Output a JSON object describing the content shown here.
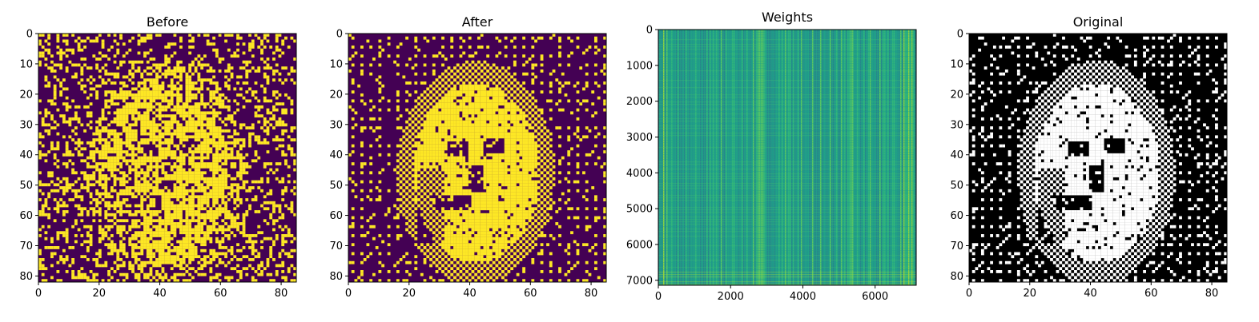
{
  "chart_data": [
    {
      "type": "heatmap",
      "title": "Before",
      "xlabel": "",
      "ylabel": "",
      "xlim": [
        0,
        85
      ],
      "ylim": [
        82,
        0
      ],
      "xticks": [
        0,
        20,
        40,
        60,
        80
      ],
      "yticks": [
        0,
        10,
        20,
        30,
        40,
        50,
        60,
        70,
        80
      ],
      "grid_shape": [
        83,
        86
      ],
      "colormap": [
        "#440154",
        "#fde725"
      ],
      "content": "binary noisy image of a face (yellow=1, purple=0)"
    },
    {
      "type": "heatmap",
      "title": "After",
      "xlabel": "",
      "ylabel": "",
      "xlim": [
        0,
        85
      ],
      "ylim": [
        82,
        0
      ],
      "xticks": [
        0,
        20,
        40,
        60,
        80
      ],
      "yticks": [
        0,
        10,
        20,
        30,
        40,
        50,
        60,
        70,
        80
      ],
      "grid_shape": [
        83,
        86
      ],
      "colormap": [
        "#440154",
        "#fde725"
      ],
      "content": "reconstructed binary face image"
    },
    {
      "type": "heatmap",
      "title": "Weights",
      "xlabel": "",
      "ylabel": "",
      "xlim": [
        0,
        7138
      ],
      "ylim": [
        7138,
        0
      ],
      "xticks": [
        0,
        2000,
        4000,
        6000
      ],
      "yticks": [
        0,
        1000,
        2000,
        3000,
        4000,
        5000,
        6000,
        7000
      ],
      "colormap": [
        "#1f9e89",
        "#35b779",
        "#6ece58",
        "#b5de2b"
      ],
      "content": "weight matrix, mostly teal-green with vertical stripe texture"
    },
    {
      "type": "heatmap",
      "title": "Original",
      "xlabel": "",
      "ylabel": "",
      "xlim": [
        0,
        85
      ],
      "ylim": [
        82,
        0
      ],
      "xticks": [
        0,
        20,
        40,
        60,
        80
      ],
      "yticks": [
        0,
        10,
        20,
        30,
        40,
        50,
        60,
        70,
        80
      ],
      "grid_shape": [
        83,
        86
      ],
      "colormap": [
        "#000000",
        "#ffffff"
      ],
      "content": "original binary face image, grayscale"
    }
  ]
}
